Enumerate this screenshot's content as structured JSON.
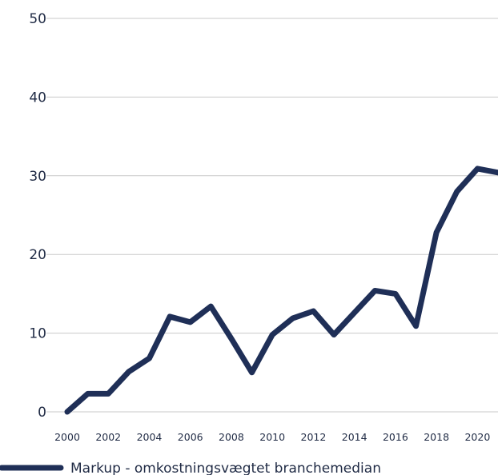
{
  "chart_data": {
    "type": "line",
    "x": [
      2000,
      2001,
      2002,
      2003,
      2004,
      2005,
      2006,
      2007,
      2008,
      2009,
      2010,
      2011,
      2012,
      2013,
      2014,
      2015,
      2016,
      2017,
      2018,
      2019,
      2020,
      2021
    ],
    "series": [
      {
        "name": "Markup - omkostningsvægtet branchemedian",
        "color": "#1f2f57",
        "values": [
          0,
          2.3,
          2.3,
          5.1,
          6.8,
          12.1,
          11.4,
          13.4,
          9.3,
          5.0,
          9.8,
          11.9,
          12.8,
          9.8,
          12.6,
          15.4,
          15.0,
          10.9,
          22.8,
          28.0,
          30.9,
          30.4
        ]
      }
    ],
    "y_ticks": [
      "0",
      "10",
      "20",
      "30",
      "40",
      "50"
    ],
    "x_ticks": [
      "2000",
      "2002",
      "2004",
      "2006",
      "2008",
      "2010",
      "2012",
      "2014",
      "2016",
      "2018",
      "2020"
    ],
    "ylim": [
      0,
      50
    ],
    "xlim": [
      2000,
      2021
    ],
    "grid": true,
    "legend_position": "bottom-left"
  }
}
